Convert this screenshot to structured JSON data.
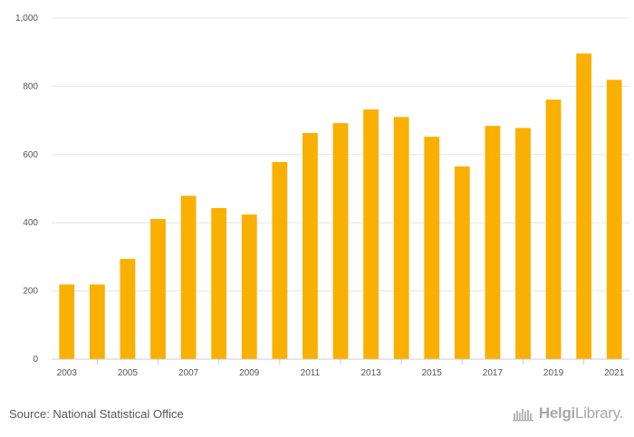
{
  "chart_data": {
    "type": "bar",
    "title": "",
    "xlabel": "",
    "ylabel": "",
    "categories": [
      "2003",
      "2004",
      "2005",
      "2006",
      "2007",
      "2008",
      "2009",
      "2010",
      "2011",
      "2012",
      "2013",
      "2014",
      "2015",
      "2016",
      "2017",
      "2018",
      "2019",
      "2020",
      "2021"
    ],
    "x_tick_labels": [
      "2003",
      "2005",
      "2007",
      "2009",
      "2011",
      "2013",
      "2015",
      "2017",
      "2019",
      "2021"
    ],
    "values": [
      219,
      219,
      294,
      411,
      479,
      443,
      424,
      578,
      663,
      692,
      732,
      710,
      652,
      565,
      684,
      678,
      761,
      896,
      819
    ],
    "ylim": [
      0,
      1000
    ],
    "y_ticks": [
      0,
      200,
      400,
      600,
      800,
      1000
    ],
    "y_tick_labels": [
      "0",
      "200",
      "400",
      "600",
      "800",
      "1,000"
    ],
    "grid": true,
    "legend": "none",
    "colors": {
      "bar": "#F9B000",
      "grid": "#e6e6e6",
      "axis": "#cccccc"
    }
  },
  "footer": {
    "source": "Source: National Statistical Office",
    "brand_strong": "Helgi",
    "brand_light": "Library."
  }
}
